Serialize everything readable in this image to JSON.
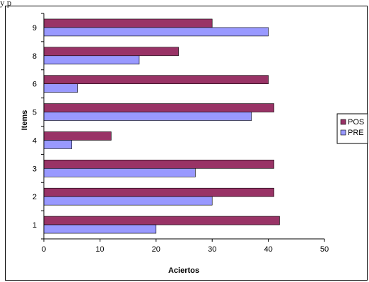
{
  "top_text": "y p",
  "chart_data": {
    "type": "bar",
    "orientation": "horizontal",
    "title": "",
    "xlabel": "Aciertos",
    "ylabel": "Items",
    "categories": [
      "1",
      "2",
      "3",
      "4",
      "5",
      "6",
      "8",
      "9"
    ],
    "series": [
      {
        "name": "POS",
        "color": "#993366",
        "values": [
          42,
          41,
          41,
          12,
          41,
          40,
          24,
          30
        ]
      },
      {
        "name": "PRE",
        "color": "#9999FF",
        "values": [
          20,
          30,
          27,
          5,
          37,
          6,
          17,
          40
        ]
      }
    ],
    "xlim": [
      0,
      50
    ],
    "xticks": [
      0,
      10,
      20,
      30,
      40,
      50
    ],
    "grid": false,
    "legend": "right"
  }
}
